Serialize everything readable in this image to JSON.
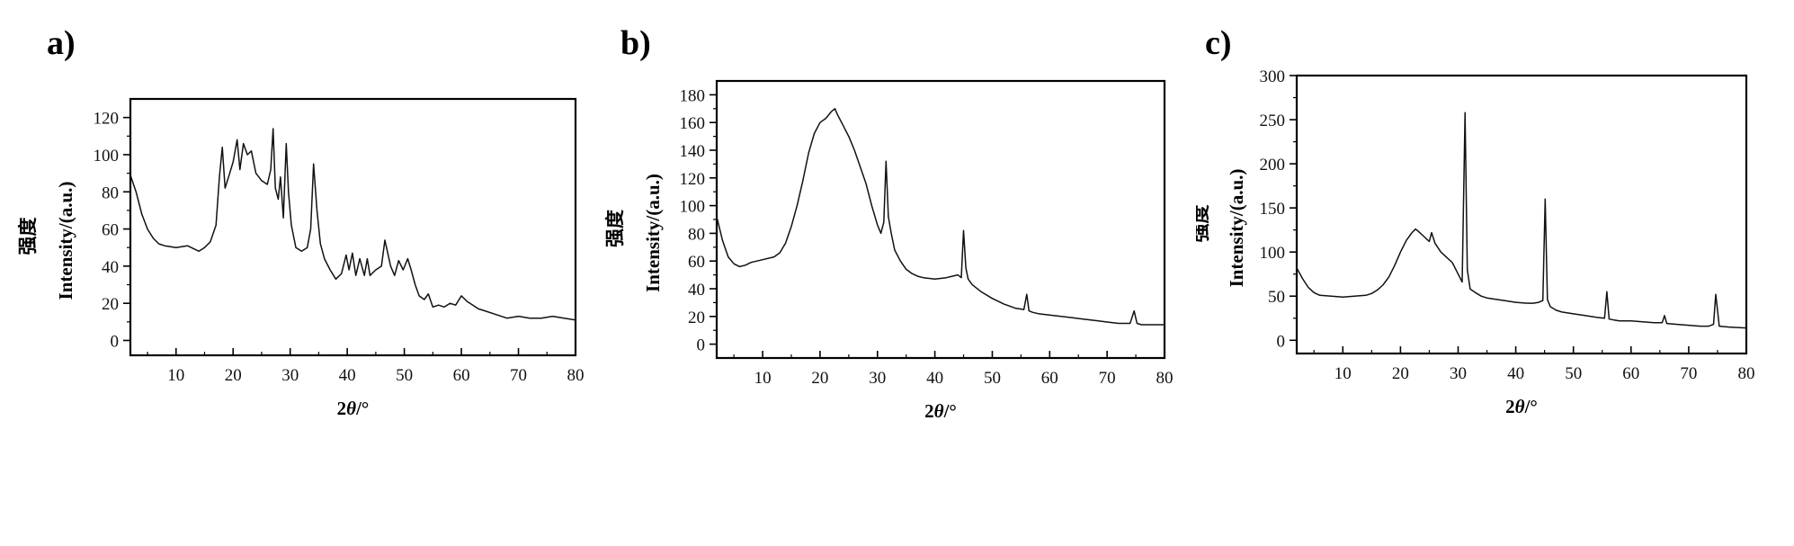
{
  "chart_data": [
    {
      "type": "line",
      "panel_label": "a)",
      "xlabel_prefix": "2",
      "xlabel_symbol": "θ",
      "xlabel_unit": "/°",
      "ylabel_cn": "强度",
      "ylabel": "Intensity/(a.u.)",
      "xlim": [
        2,
        80
      ],
      "ylim": [
        -8,
        130
      ],
      "xticks": [
        10,
        20,
        30,
        40,
        50,
        60,
        70,
        80
      ],
      "yticks": [
        0,
        20,
        40,
        60,
        80,
        100,
        120
      ],
      "series": [
        {
          "x": [
            2,
            3,
            4,
            5,
            6,
            7,
            8,
            10,
            12,
            14,
            15,
            16,
            17,
            17.6,
            18.1,
            18.6,
            19.2,
            20,
            20.7,
            21.2,
            21.8,
            22.5,
            23.2,
            24,
            25,
            26,
            26.6,
            27,
            27.4,
            27.9,
            28.3,
            28.8,
            29.3,
            29.7,
            30.2,
            31,
            32,
            33,
            33.6,
            34.1,
            34.7,
            35.3,
            36,
            37,
            38,
            39,
            39.8,
            40.3,
            40.9,
            41.5,
            42.2,
            43,
            43.5,
            44,
            45,
            46,
            46.6,
            47.1,
            47.6,
            48.3,
            49,
            49.8,
            50.6,
            51.2,
            51.9,
            52.6,
            53.5,
            54.2,
            55,
            56,
            57,
            58,
            59,
            60,
            61,
            62,
            63,
            64,
            66,
            68,
            70,
            72,
            74,
            76,
            78,
            80
          ],
          "y": [
            89,
            80,
            68,
            60,
            55,
            52,
            51,
            50,
            51,
            48,
            50,
            53,
            62,
            88,
            104,
            82,
            88,
            96,
            108,
            92,
            106,
            100,
            102,
            90,
            86,
            84,
            92,
            114,
            82,
            76,
            88,
            66,
            106,
            80,
            62,
            50,
            48,
            50,
            60,
            95,
            70,
            52,
            44,
            38,
            33,
            36,
            46,
            38,
            47,
            35,
            44,
            35,
            44,
            35,
            38,
            40,
            54,
            47,
            40,
            35,
            43,
            38,
            44,
            38,
            30,
            24,
            22,
            25,
            18,
            19,
            18,
            20,
            19,
            24,
            21,
            19,
            17,
            16,
            14,
            12,
            13,
            12,
            12,
            13,
            12,
            11
          ]
        }
      ]
    },
    {
      "type": "line",
      "panel_label": "b)",
      "xlabel_prefix": "2",
      "xlabel_symbol": "θ",
      "xlabel_unit": "/°",
      "ylabel_cn": "强度",
      "ylabel": "Intensity/(a.u.)",
      "xlim": [
        2,
        80
      ],
      "ylim": [
        -10,
        190
      ],
      "xticks": [
        10,
        20,
        30,
        40,
        50,
        60,
        70,
        80
      ],
      "yticks": [
        0,
        20,
        40,
        60,
        80,
        100,
        120,
        140,
        160,
        180
      ],
      "series": [
        {
          "x": [
            2,
            3,
            4,
            5,
            6,
            7,
            8,
            10,
            12,
            13,
            14,
            15,
            16,
            17,
            18,
            19,
            20,
            21,
            22,
            22.6,
            23,
            24,
            25,
            26,
            27,
            28,
            29,
            30,
            30.6,
            31.1,
            31.5,
            31.9,
            32.4,
            33,
            34,
            35,
            36,
            37,
            38,
            40,
            42,
            43,
            44,
            44.6,
            45,
            45.4,
            45.8,
            46.5,
            48,
            50,
            52,
            54,
            55.5,
            56,
            56.4,
            57,
            58,
            60,
            62,
            64,
            66,
            68,
            70,
            72,
            74,
            74.7,
            75.2,
            76,
            78,
            80
          ],
          "y": [
            92,
            75,
            63,
            58,
            56,
            57,
            59,
            61,
            63,
            66,
            73,
            85,
            100,
            118,
            138,
            152,
            160,
            163,
            168,
            170,
            166,
            158,
            150,
            140,
            128,
            116,
            100,
            86,
            80,
            88,
            132,
            92,
            80,
            68,
            60,
            54,
            51,
            49,
            48,
            47,
            48,
            49,
            50,
            48,
            82,
            55,
            47,
            43,
            38,
            33,
            29,
            26,
            25,
            36,
            24,
            23,
            22,
            21,
            20,
            19,
            18,
            17,
            16,
            15,
            15,
            24,
            15,
            14,
            14,
            14
          ]
        }
      ]
    },
    {
      "type": "line",
      "panel_label": "c)",
      "xlabel_prefix": "2",
      "xlabel_symbol": "θ",
      "xlabel_unit": "/°",
      "ylabel_cn": "强度",
      "ylabel": "Intensity/(a.u.)",
      "xlim": [
        2,
        80
      ],
      "ylim": [
        -15,
        300
      ],
      "xticks": [
        10,
        20,
        30,
        40,
        50,
        60,
        70,
        80
      ],
      "yticks": [
        0,
        50,
        100,
        150,
        200,
        250,
        300
      ],
      "series": [
        {
          "x": [
            2,
            3,
            4,
            5,
            6,
            8,
            10,
            12,
            14,
            15,
            16,
            17,
            18,
            19,
            20,
            21,
            22,
            22.6,
            23,
            24,
            25,
            25.4,
            26,
            27,
            28,
            29,
            30,
            30.7,
            31.2,
            31.6,
            32.1,
            33,
            34,
            35,
            36,
            38,
            40,
            42,
            43,
            44,
            44.7,
            45.1,
            45.5,
            46,
            47,
            48,
            50,
            52,
            54,
            55.4,
            55.8,
            56.2,
            57,
            58,
            60,
            62,
            64,
            65.4,
            65.8,
            66.2,
            68,
            70,
            72,
            73.5,
            74.3,
            74.7,
            75.3,
            77,
            80
          ],
          "y": [
            82,
            70,
            60,
            54,
            51,
            50,
            49,
            50,
            51,
            53,
            57,
            63,
            72,
            85,
            100,
            113,
            122,
            126,
            124,
            118,
            112,
            122,
            110,
            100,
            94,
            88,
            75,
            66,
            258,
            80,
            58,
            54,
            50,
            48,
            47,
            45,
            43,
            42,
            42,
            43,
            45,
            160,
            46,
            38,
            34,
            32,
            30,
            28,
            26,
            25,
            55,
            24,
            23,
            22,
            22,
            21,
            20,
            20,
            28,
            19,
            18,
            17,
            16,
            16,
            18,
            52,
            16,
            15,
            14
          ]
        }
      ]
    }
  ]
}
